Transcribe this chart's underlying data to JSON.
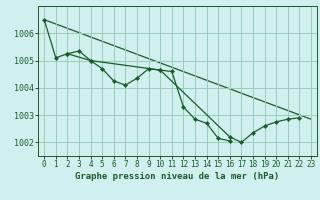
{
  "title": "Graphe pression niveau de la mer (hPa)",
  "bg_color": "#cff0ee",
  "grid_color": "#99ccbb",
  "line_color": "#1a5c28",
  "marker_color": "#1a5c28",
  "xlim": [
    -0.5,
    23.5
  ],
  "ylim": [
    1001.5,
    1007.0
  ],
  "yticks": [
    1002,
    1003,
    1004,
    1005,
    1006
  ],
  "xticks": [
    0,
    1,
    2,
    3,
    4,
    5,
    6,
    7,
    8,
    9,
    10,
    11,
    12,
    13,
    14,
    15,
    16,
    17,
    18,
    19,
    20,
    21,
    22,
    23
  ],
  "series1_x": [
    0,
    1,
    2,
    3,
    4,
    5,
    6,
    7,
    8,
    9,
    10,
    11,
    12,
    13,
    14,
    15,
    16
  ],
  "series1_y": [
    1006.5,
    1005.1,
    1005.25,
    1005.35,
    1005.0,
    1004.7,
    1004.25,
    1004.1,
    1004.35,
    1004.7,
    1004.65,
    1004.6,
    1003.3,
    1002.85,
    1002.7,
    1002.15,
    1002.05
  ],
  "series2_x": [
    2,
    4,
    10,
    16,
    17,
    18,
    19,
    20,
    21,
    22
  ],
  "series2_y": [
    1005.25,
    1005.0,
    1004.65,
    1002.2,
    1002.0,
    1002.35,
    1002.6,
    1002.75,
    1002.85,
    1002.9
  ],
  "trend_x": [
    0,
    23
  ],
  "trend_y": [
    1006.5,
    1002.85
  ],
  "font_color": "#1a5c28",
  "xlabel_fontsize": 6.5,
  "ytick_fontsize": 6.0,
  "xtick_fontsize": 5.5
}
